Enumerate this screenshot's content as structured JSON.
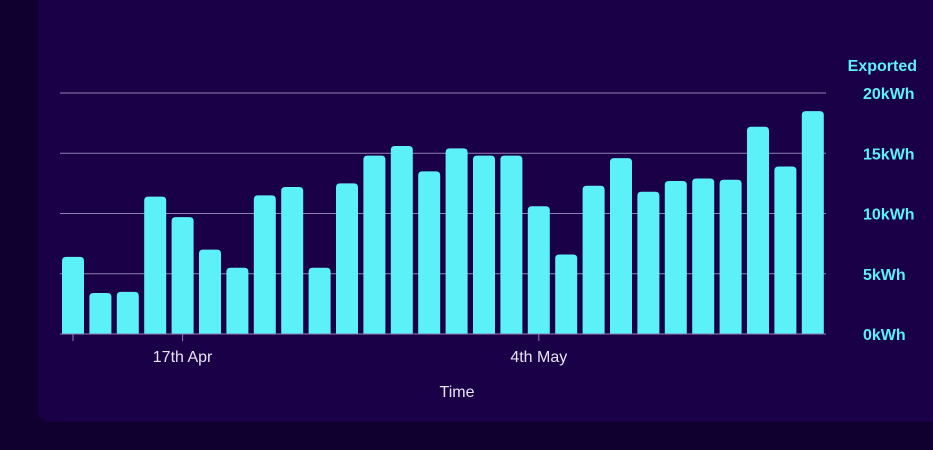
{
  "chart_data": {
    "type": "bar",
    "series_name": "Exported",
    "xlabel": "Time",
    "ylabel": "",
    "ylim": [
      0,
      20
    ],
    "y_ticks": [
      {
        "value": 0,
        "label": "0kWh"
      },
      {
        "value": 5,
        "label": "5kWh"
      },
      {
        "value": 10,
        "label": "10kWh"
      },
      {
        "value": 15,
        "label": "15kWh"
      },
      {
        "value": 20,
        "label": "20kWh"
      }
    ],
    "x_tick_labels": [
      {
        "index": 4,
        "label": "17th Apr"
      },
      {
        "index": 17,
        "label": "4th May"
      }
    ],
    "values": [
      6.4,
      3.4,
      3.5,
      11.4,
      9.7,
      7.0,
      5.5,
      11.5,
      12.2,
      5.5,
      12.5,
      14.8,
      15.6,
      13.5,
      15.4,
      14.8,
      14.8,
      10.6,
      6.6,
      12.3,
      14.6,
      11.8,
      12.7,
      12.9,
      12.8,
      17.2,
      13.9,
      18.5
    ],
    "grid": true,
    "colors": {
      "bar": "#5cf0f8",
      "grid": "#8c7fb3",
      "text": "#e8e4f4",
      "background": "#1a0047"
    }
  }
}
